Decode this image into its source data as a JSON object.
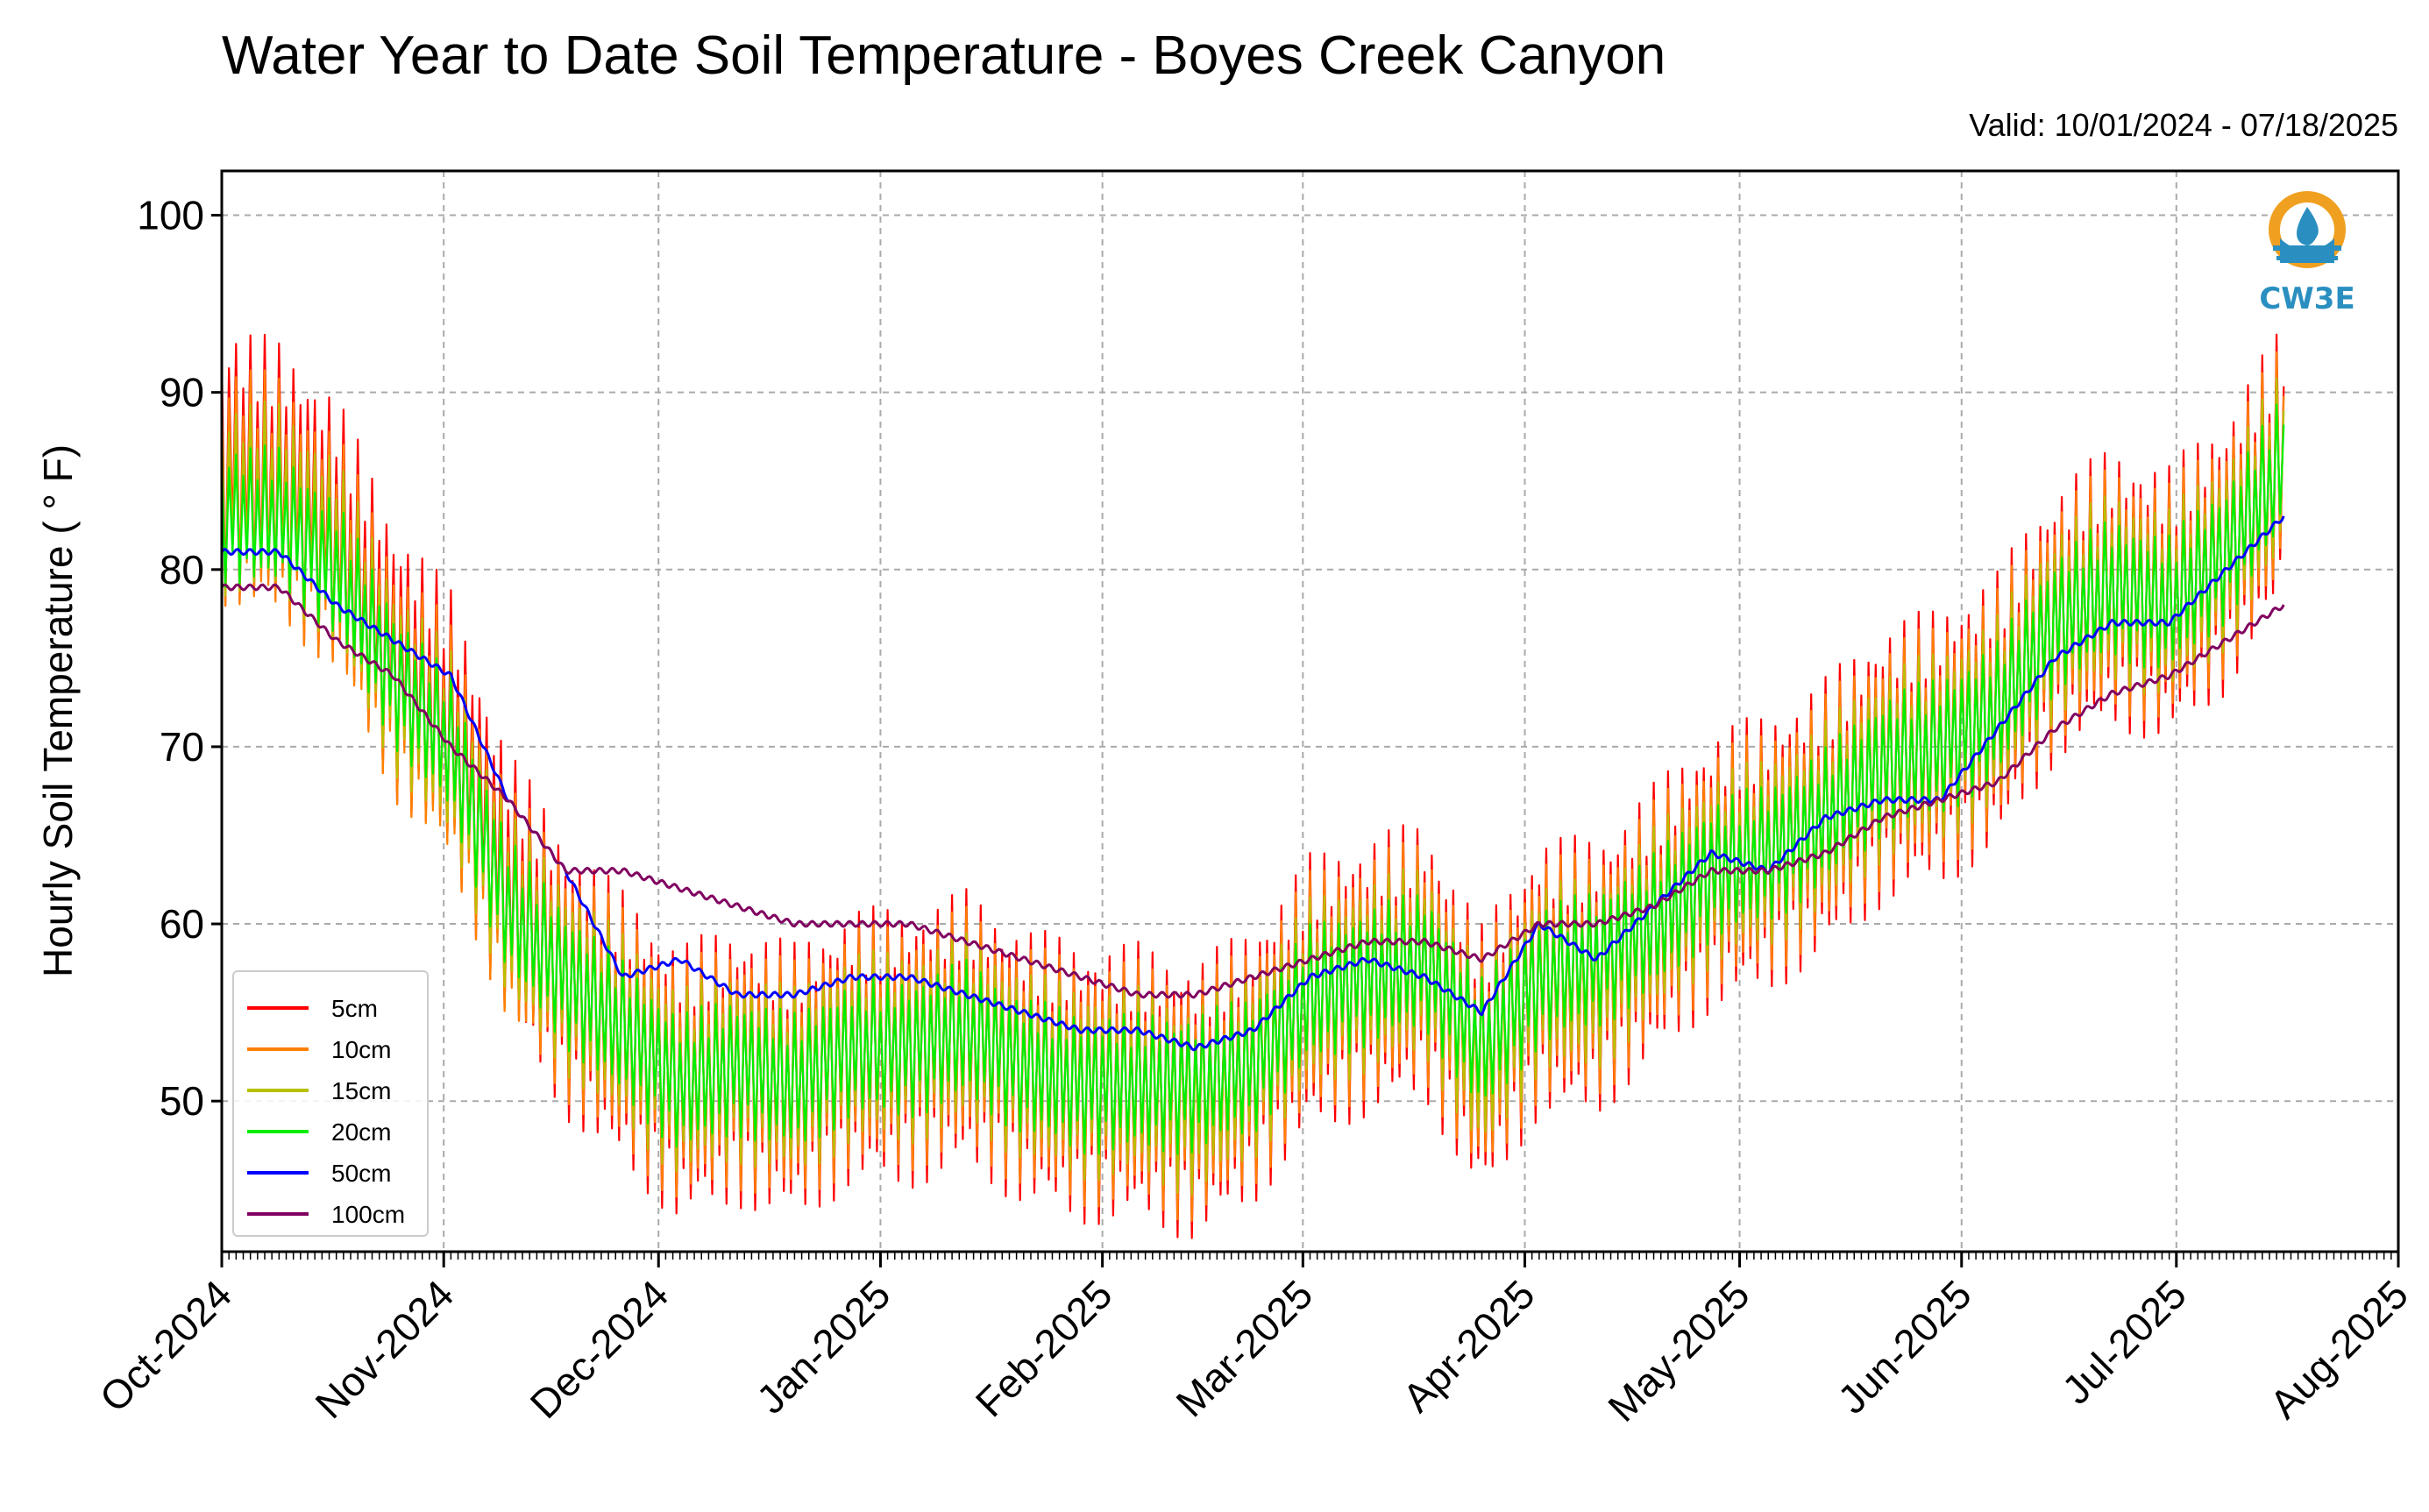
{
  "header": {
    "title": "Water Year to Date Soil Temperature - Boyes Creek Canyon",
    "valid": "Valid: 10/01/2024 - 07/18/2025"
  },
  "logo": {
    "text": "CW3E",
    "icon": "cw3e-water-drop-logo-icon"
  },
  "colors": {
    "5cm": "#ff0000",
    "10cm": "#ff8000",
    "15cm": "#b8c000",
    "20cm": "#00ee00",
    "50cm": "#0000ff",
    "100cm": "#800060"
  },
  "chart_data": {
    "type": "line",
    "ylabel": "Hourly Soil Temperature ( ° F)",
    "xlabel": "",
    "ylim": [
      41.5,
      102.5
    ],
    "xlim": [
      "2024-10-01",
      "2025-08-01"
    ],
    "yticks": [
      50,
      60,
      70,
      80,
      90,
      100
    ],
    "xticks": [
      "Oct-2024",
      "Nov-2024",
      "Dec-2024",
      "Jan-2025",
      "Feb-2025",
      "Mar-2025",
      "Apr-2025",
      "May-2025",
      "Jun-2025",
      "Jul-2025",
      "Aug-2025"
    ],
    "grid": true,
    "legend_position": "lower-left",
    "x": [
      "2024-10-01",
      "2024-10-09",
      "2024-10-17",
      "2024-10-25",
      "2024-11-02",
      "2024-11-10",
      "2024-11-18",
      "2024-11-26",
      "2024-12-04",
      "2024-12-12",
      "2024-12-20",
      "2024-12-28",
      "2025-01-05",
      "2025-01-13",
      "2025-01-21",
      "2025-01-29",
      "2025-02-06",
      "2025-02-14",
      "2025-02-22",
      "2025-03-02",
      "2025-03-10",
      "2025-03-18",
      "2025-03-26",
      "2025-04-03",
      "2025-04-11",
      "2025-04-19",
      "2025-04-27",
      "2025-05-05",
      "2025-05-13",
      "2025-05-21",
      "2025-05-29",
      "2025-06-06",
      "2025-06-14",
      "2025-06-22",
      "2025-06-30",
      "2025-07-08",
      "2025-07-16"
    ],
    "daily_swing": {
      "5cm": 16,
      "10cm": 14,
      "15cm": 11,
      "20cm": 8
    },
    "series": [
      {
        "name": "5cm",
        "values": [
          86,
          85,
          82,
          75,
          71,
          62,
          57,
          54,
          51,
          52,
          51,
          53,
          53,
          54,
          52,
          51,
          51,
          50,
          52,
          56,
          57,
          58,
          52,
          57,
          57,
          60,
          63,
          64,
          66,
          69,
          70,
          72,
          77,
          79,
          78,
          81,
          86
        ]
      },
      {
        "name": "10cm",
        "values": [
          85,
          84,
          81,
          74,
          70,
          61,
          57,
          54,
          51,
          52,
          51,
          53,
          53,
          54,
          52,
          51,
          51,
          50,
          52,
          56,
          57,
          58,
          52,
          57,
          57,
          60,
          63,
          64,
          66,
          69,
          70,
          72,
          77,
          79,
          78,
          81,
          86
        ]
      },
      {
        "name": "15cm",
        "values": [
          84,
          84,
          81,
          74,
          70,
          61,
          57,
          54,
          51,
          52,
          51,
          53,
          53,
          54,
          52,
          51,
          51,
          50,
          52,
          56,
          57,
          58,
          52,
          57,
          57,
          60,
          63,
          64,
          66,
          69,
          70,
          72,
          77,
          79,
          78,
          81,
          86
        ]
      },
      {
        "name": "20cm",
        "values": [
          83,
          83,
          80,
          74,
          70,
          61,
          57,
          54,
          51,
          52,
          51,
          53,
          53,
          54,
          52,
          51,
          51,
          51,
          52,
          56,
          57,
          58,
          53,
          57,
          58,
          60,
          63,
          64,
          66,
          69,
          70,
          72,
          77,
          79,
          78,
          81,
          86
        ]
      },
      {
        "name": "50cm",
        "values": [
          81,
          81,
          78,
          76,
          74,
          67,
          63,
          57,
          58,
          56,
          56,
          57,
          57,
          56,
          55,
          54,
          54,
          53,
          54,
          57,
          58,
          57,
          55,
          60,
          58,
          61,
          64,
          63,
          66,
          67,
          67,
          71,
          75,
          77,
          77,
          80,
          83
        ]
      },
      {
        "name": "100cm",
        "values": [
          79,
          79,
          76,
          74,
          70,
          67,
          63,
          63,
          62,
          61,
          60,
          60,
          60,
          59,
          58,
          57,
          56,
          56,
          57,
          58,
          59,
          59,
          58,
          60,
          60,
          61,
          63,
          63,
          64,
          66,
          67,
          68,
          71,
          73,
          74,
          76,
          78
        ]
      }
    ]
  }
}
